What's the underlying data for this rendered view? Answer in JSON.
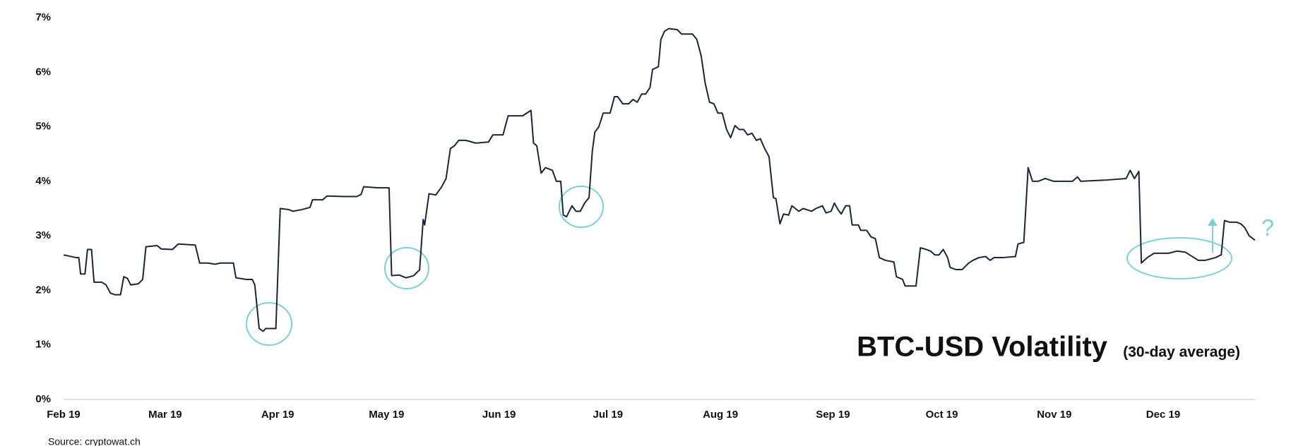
{
  "chart_data": {
    "type": "line",
    "title": "BTC-USD Volatility",
    "subtitle": "(30-day average)",
    "source": "Source: cryptowat.ch",
    "xlim": [
      0,
      328.3
    ],
    "xticks": [
      {
        "value": 0,
        "label": "Feb 19"
      },
      {
        "value": 28,
        "label": "Mar 19"
      },
      {
        "value": 59,
        "label": "Apr 19"
      },
      {
        "value": 89,
        "label": "May 19"
      },
      {
        "value": 120,
        "label": "Jun 19"
      },
      {
        "value": 150,
        "label": "Jul 19"
      },
      {
        "value": 181,
        "label": "Aug 19"
      },
      {
        "value": 212,
        "label": "Sep 19"
      },
      {
        "value": 242,
        "label": "Oct 19"
      },
      {
        "value": 273,
        "label": "Nov 19"
      },
      {
        "value": 303,
        "label": "Dec 19"
      }
    ],
    "ylim": [
      0,
      7
    ],
    "yticks": [
      {
        "value": 0,
        "label": "0%"
      },
      {
        "value": 1,
        "label": "1%"
      },
      {
        "value": 2,
        "label": "2%"
      },
      {
        "value": 3,
        "label": "3%"
      },
      {
        "value": 4,
        "label": "4%"
      },
      {
        "value": 5,
        "label": "5%"
      },
      {
        "value": 6,
        "label": "6%"
      },
      {
        "value": 7,
        "label": "7%"
      }
    ],
    "grid": false,
    "x": [
      0,
      3.5,
      4.2,
      4.7,
      5.9,
      6.6,
      7.7,
      8.4,
      10.5,
      11.7,
      12.9,
      14.1,
      15.7,
      16.6,
      17.6,
      18.5,
      20.6,
      21.8,
      22.7,
      25.8,
      26.9,
      30.0,
      31.6,
      36.3,
      37.5,
      39.8,
      41.7,
      43.3,
      46.8,
      47.5,
      50.4,
      52.0,
      52.7,
      53.9,
      55.0,
      55.7,
      58.5,
      59.7,
      62.1,
      63.2,
      65.6,
      67.9,
      68.6,
      71.4,
      72.6,
      77.3,
      80.8,
      82.0,
      82.7,
      86.7,
      89.7,
      90.4,
      92.5,
      94.4,
      96.5,
      97.7,
      98.1,
      99.1,
      99.5,
      100.7,
      102.6,
      104.2,
      105.4,
      106.6,
      107.7,
      108.9,
      110.8,
      113.6,
      117.1,
      118.3,
      121.1,
      122.5,
      126.5,
      128.8,
      129.5,
      130.4,
      131.6,
      132.8,
      134.7,
      135.8,
      137.0,
      137.7,
      138.6,
      140.1,
      141.2,
      142.4,
      143.6,
      144.8,
      145.7,
      146.4,
      147.5,
      148.7,
      150.6,
      151.8,
      152.7,
      154.1,
      155.7,
      156.9,
      158.1,
      159.3,
      160.4,
      161.6,
      162.3,
      163.9,
      164.6,
      165.6,
      166.8,
      169.1,
      170.3,
      173.3,
      174.5,
      175.7,
      176.8,
      178.0,
      179.2,
      180.3,
      181.5,
      182.7,
      183.8,
      185.0,
      186.2,
      187.4,
      188.5,
      189.7,
      190.9,
      192.0,
      193.2,
      194.4,
      195.6,
      196.3,
      197.4,
      198.4,
      199.8,
      200.7,
      202.6,
      203.8,
      206.1,
      207.3,
      209.1,
      210.1,
      211.5,
      212.4,
      213.4,
      214.3,
      215.5,
      216.6,
      217.3,
      219.0,
      219.7,
      221.3,
      222.5,
      223.7,
      224.8,
      226.5,
      228.8,
      229.5,
      231.2,
      231.9,
      234.9,
      236.1,
      237.7,
      238.9,
      240.1,
      241.2,
      242.4,
      243.6,
      244.3,
      245.9,
      247.6,
      249.4,
      250.6,
      252.2,
      254.1,
      255.3,
      256.4,
      258.8,
      262.3,
      263.0,
      264.6,
      265.8,
      267.0,
      268.6,
      270.5,
      272.8,
      278.0,
      279.4,
      280.3,
      286.9,
      292.8,
      293.9,
      295.1,
      296.3,
      297.0,
      298.6,
      300.5,
      304.5,
      306.8,
      309.1,
      311.5,
      312.7,
      314.6,
      317.4,
      319.0,
      319.9,
      321.3,
      323.2,
      324.4,
      325.5,
      326.7,
      328.3
    ],
    "series": [
      {
        "color": "#1c2536",
        "values": [
          2.65,
          2.6,
          2.6,
          2.3,
          2.3,
          2.75,
          2.75,
          2.15,
          2.15,
          2.1,
          1.95,
          1.92,
          1.92,
          2.25,
          2.22,
          2.1,
          2.12,
          2.2,
          2.8,
          2.82,
          2.76,
          2.75,
          2.85,
          2.83,
          2.5,
          2.5,
          2.48,
          2.5,
          2.5,
          2.23,
          2.2,
          2.2,
          2.1,
          1.3,
          1.25,
          1.3,
          1.3,
          3.5,
          3.48,
          3.45,
          3.48,
          3.52,
          3.66,
          3.66,
          3.73,
          3.72,
          3.72,
          3.76,
          3.9,
          3.88,
          3.88,
          2.27,
          2.28,
          2.23,
          2.27,
          2.35,
          2.37,
          3.3,
          3.2,
          3.77,
          3.75,
          3.9,
          4.05,
          4.6,
          4.65,
          4.75,
          4.75,
          4.7,
          4.72,
          4.85,
          4.85,
          5.2,
          5.2,
          5.3,
          4.7,
          4.65,
          4.15,
          4.25,
          4.2,
          4.0,
          4.0,
          3.38,
          3.35,
          3.55,
          3.45,
          3.45,
          3.6,
          3.7,
          4.55,
          4.9,
          5.0,
          5.25,
          5.25,
          5.55,
          5.55,
          5.42,
          5.42,
          5.5,
          5.45,
          5.6,
          5.6,
          5.72,
          6.05,
          6.1,
          6.6,
          6.75,
          6.8,
          6.78,
          6.7,
          6.7,
          6.6,
          6.3,
          5.8,
          5.45,
          5.42,
          5.25,
          5.25,
          4.95,
          4.8,
          5.02,
          4.95,
          4.95,
          4.85,
          4.88,
          4.75,
          4.78,
          4.6,
          4.45,
          3.7,
          3.68,
          3.22,
          3.4,
          3.38,
          3.55,
          3.45,
          3.5,
          3.45,
          3.5,
          3.55,
          3.42,
          3.45,
          3.6,
          3.48,
          3.4,
          3.55,
          3.55,
          3.2,
          3.2,
          3.1,
          3.1,
          2.98,
          2.95,
          2.6,
          2.55,
          2.52,
          2.25,
          2.2,
          2.08,
          2.08,
          2.78,
          2.75,
          2.72,
          2.65,
          2.65,
          2.75,
          2.6,
          2.42,
          2.38,
          2.38,
          2.5,
          2.55,
          2.6,
          2.62,
          2.55,
          2.6,
          2.6,
          2.62,
          2.85,
          2.88,
          4.25,
          4.0,
          4.0,
          4.05,
          4.0,
          4.0,
          4.08,
          4.0,
          4.02,
          4.05,
          4.2,
          4.05,
          4.18,
          2.5,
          2.6,
          2.68,
          2.68,
          2.72,
          2.7,
          2.6,
          2.55,
          2.55,
          2.6,
          2.65,
          3.28,
          3.25,
          3.25,
          3.22,
          3.15,
          3.0,
          2.92
        ]
      }
    ]
  }
}
